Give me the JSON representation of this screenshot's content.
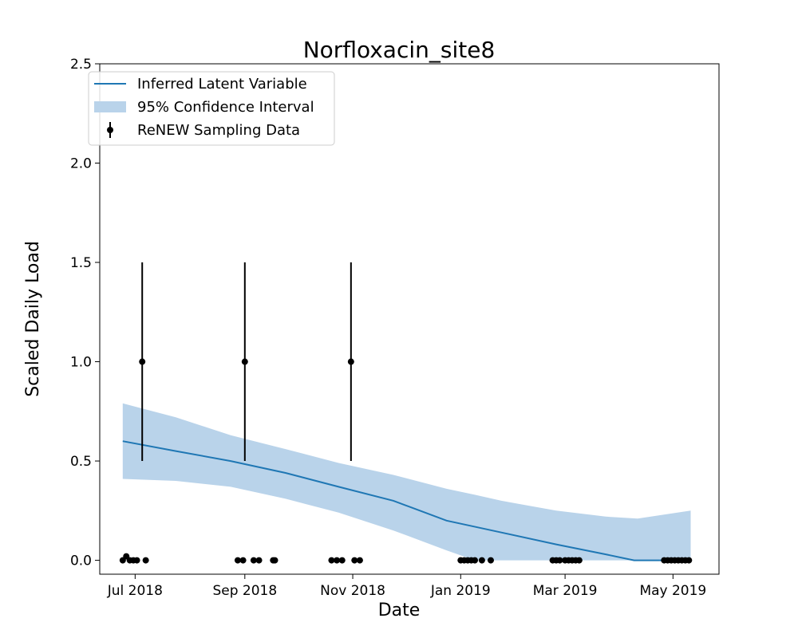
{
  "chart_data": {
    "type": "line",
    "title": "Norfloxacin_site8",
    "xlabel": "Date",
    "ylabel": "Scaled Daily Load",
    "xlim": [
      "2018-06-11",
      "2019-05-27"
    ],
    "ylim": [
      -0.07,
      2.5
    ],
    "x_ticks": [
      {
        "date": "2018-07-01",
        "label": "Jul 2018"
      },
      {
        "date": "2018-09-01",
        "label": "Sep 2018"
      },
      {
        "date": "2018-11-01",
        "label": "Nov 2018"
      },
      {
        "date": "2019-01-01",
        "label": "Jan 2019"
      },
      {
        "date": "2019-03-01",
        "label": "Mar 2019"
      },
      {
        "date": "2019-05-01",
        "label": "May 2019"
      }
    ],
    "y_ticks": [
      {
        "value": 0.0,
        "label": "0.0"
      },
      {
        "value": 0.5,
        "label": "0.5"
      },
      {
        "value": 1.0,
        "label": "1.0"
      },
      {
        "value": 1.5,
        "label": "1.5"
      },
      {
        "value": 2.0,
        "label": "2.0"
      },
      {
        "value": 2.5,
        "label": "2.5"
      }
    ],
    "grid": false,
    "legend_position": "top-left",
    "colors": {
      "line": "#1f77b4",
      "band": "#b9d3ea",
      "points": "#000000"
    },
    "series": [
      {
        "name": "Inferred Latent Variable",
        "kind": "line",
        "points": [
          {
            "x": "2018-06-24",
            "y": 0.6
          },
          {
            "x": "2018-07-24",
            "y": 0.55
          },
          {
            "x": "2018-08-24",
            "y": 0.5
          },
          {
            "x": "2018-09-24",
            "y": 0.44
          },
          {
            "x": "2018-10-24",
            "y": 0.37
          },
          {
            "x": "2018-11-24",
            "y": 0.3
          },
          {
            "x": "2018-12-24",
            "y": 0.2
          },
          {
            "x": "2019-01-24",
            "y": 0.14
          },
          {
            "x": "2019-02-24",
            "y": 0.08
          },
          {
            "x": "2019-03-24",
            "y": 0.03
          },
          {
            "x": "2019-04-09",
            "y": 0.0
          },
          {
            "x": "2019-05-11",
            "y": 0.0
          }
        ]
      },
      {
        "name": "95% Confidence Interval",
        "kind": "band",
        "points": [
          {
            "x": "2018-06-24",
            "low": 0.41,
            "high": 0.79
          },
          {
            "x": "2018-07-24",
            "low": 0.4,
            "high": 0.72
          },
          {
            "x": "2018-08-24",
            "low": 0.37,
            "high": 0.63
          },
          {
            "x": "2018-09-24",
            "low": 0.31,
            "high": 0.56
          },
          {
            "x": "2018-10-24",
            "low": 0.24,
            "high": 0.49
          },
          {
            "x": "2018-11-24",
            "low": 0.15,
            "high": 0.43
          },
          {
            "x": "2018-12-24",
            "low": 0.05,
            "high": 0.36
          },
          {
            "x": "2019-01-09",
            "low": 0.0,
            "high": 0.33
          },
          {
            "x": "2019-01-24",
            "low": 0.0,
            "high": 0.3
          },
          {
            "x": "2019-02-24",
            "low": 0.0,
            "high": 0.25
          },
          {
            "x": "2019-03-24",
            "low": 0.0,
            "high": 0.22
          },
          {
            "x": "2019-04-11",
            "low": 0.0,
            "high": 0.21
          },
          {
            "x": "2019-05-11",
            "low": 0.0,
            "high": 0.25
          }
        ]
      },
      {
        "name": "ReNEW Sampling Data",
        "kind": "errorbar",
        "points": [
          {
            "x": "2018-06-24",
            "y": 0.0
          },
          {
            "x": "2018-06-26",
            "y": 0.02
          },
          {
            "x": "2018-06-28",
            "y": 0.0
          },
          {
            "x": "2018-06-30",
            "y": 0.0
          },
          {
            "x": "2018-07-02",
            "y": 0.0
          },
          {
            "x": "2018-07-05",
            "y": 1.0,
            "err_low": 0.5,
            "err_high": 1.5
          },
          {
            "x": "2018-07-07",
            "y": 0.0
          },
          {
            "x": "2018-08-28",
            "y": 0.0
          },
          {
            "x": "2018-08-31",
            "y": 0.0
          },
          {
            "x": "2018-09-01",
            "y": 1.0,
            "err_low": 0.5,
            "err_high": 1.5
          },
          {
            "x": "2018-09-06",
            "y": 0.0
          },
          {
            "x": "2018-09-09",
            "y": 0.0
          },
          {
            "x": "2018-09-17",
            "y": 0.0
          },
          {
            "x": "2018-09-18",
            "y": 0.0
          },
          {
            "x": "2018-10-20",
            "y": 0.0
          },
          {
            "x": "2018-10-23",
            "y": 0.0
          },
          {
            "x": "2018-10-26",
            "y": 0.0
          },
          {
            "x": "2018-10-31",
            "y": 1.0,
            "err_low": 0.5,
            "err_high": 1.5
          },
          {
            "x": "2018-11-02",
            "y": 0.0
          },
          {
            "x": "2018-11-05",
            "y": 0.0
          },
          {
            "x": "2019-01-01",
            "y": 0.0
          },
          {
            "x": "2019-01-03",
            "y": 0.0
          },
          {
            "x": "2019-01-05",
            "y": 0.0
          },
          {
            "x": "2019-01-07",
            "y": 0.0
          },
          {
            "x": "2019-01-09",
            "y": 0.0
          },
          {
            "x": "2019-01-13",
            "y": 0.0
          },
          {
            "x": "2019-01-18",
            "y": 0.0
          },
          {
            "x": "2019-02-22",
            "y": 0.0
          },
          {
            "x": "2019-02-24",
            "y": 0.0
          },
          {
            "x": "2019-02-26",
            "y": 0.0
          },
          {
            "x": "2019-03-01",
            "y": 0.0
          },
          {
            "x": "2019-03-03",
            "y": 0.0
          },
          {
            "x": "2019-03-05",
            "y": 0.0
          },
          {
            "x": "2019-03-07",
            "y": 0.0
          },
          {
            "x": "2019-03-09",
            "y": 0.0
          },
          {
            "x": "2019-04-26",
            "y": 0.0
          },
          {
            "x": "2019-04-28",
            "y": 0.0
          },
          {
            "x": "2019-04-30",
            "y": 0.0
          },
          {
            "x": "2019-05-02",
            "y": 0.0
          },
          {
            "x": "2019-05-04",
            "y": 0.0
          },
          {
            "x": "2019-05-06",
            "y": 0.0
          },
          {
            "x": "2019-05-08",
            "y": 0.0
          },
          {
            "x": "2019-05-10",
            "y": 0.0
          }
        ]
      }
    ]
  }
}
